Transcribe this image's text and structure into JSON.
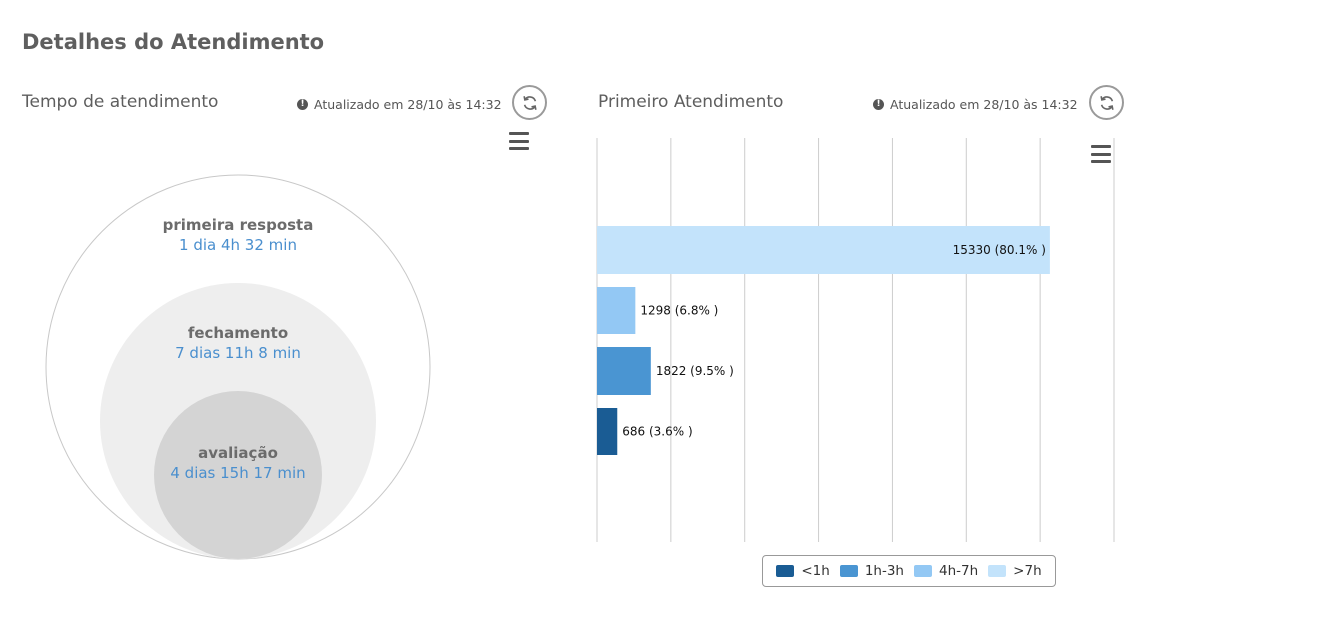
{
  "page": {
    "title": "Detalhes do Atendimento"
  },
  "left_panel": {
    "title": "Tempo de atendimento",
    "updated_text": "Atualizado em 28/10 às 14:32",
    "bubbles": [
      {
        "name": "primeira resposta",
        "value": "1 dia 4h 32 min",
        "color": "#ffffff"
      },
      {
        "name": "fechamento",
        "value": "7 dias 11h 8 min",
        "color": "#eeeeee"
      },
      {
        "name": "avaliação",
        "value": "4 dias 15h 17 min",
        "color": "#d4d4d4"
      }
    ]
  },
  "right_panel": {
    "title": "Primeiro Atendimento",
    "updated_text": "Atualizado em 28/10 às 14:32"
  },
  "chart_data": {
    "type": "bar",
    "orientation": "horizontal",
    "series": [
      {
        "name": ">7h",
        "value": 15330,
        "label": "15330 (80.1% )",
        "color": "#c3e3fb"
      },
      {
        "name": "4h-7h",
        "value": 1298,
        "label": "1298 (6.8% )",
        "color": "#93c8f4"
      },
      {
        "name": "1h-3h",
        "value": 1822,
        "label": "1822 (9.5% )",
        "color": "#4a95d2"
      },
      {
        "name": "<1h",
        "value": 686,
        "label": "686 (3.6% )",
        "color": "#1a5c94"
      }
    ],
    "legend": [
      "<1h",
      "1h-3h",
      "4h-7h",
      ">7h"
    ],
    "xlim": [
      0,
      17500
    ],
    "grid_step": 2500,
    "grid": true,
    "legend_position": "bottom"
  },
  "icons": {
    "info": "!",
    "refresh": "refresh-icon",
    "menu": "menu-icon"
  }
}
